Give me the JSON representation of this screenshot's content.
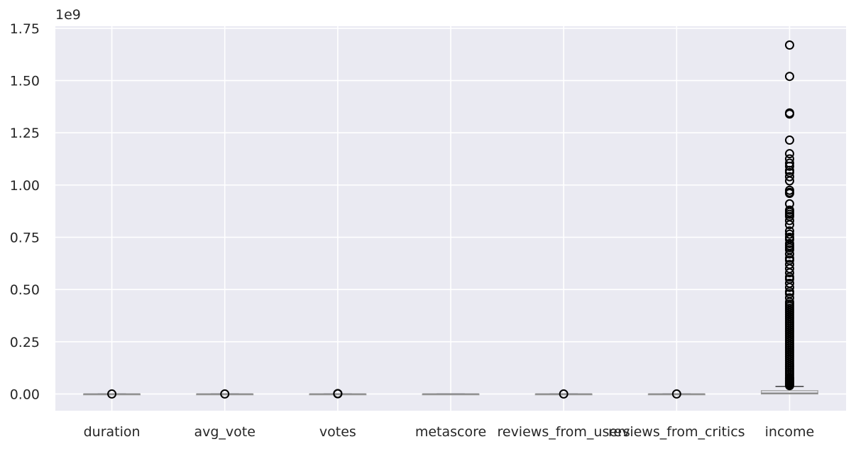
{
  "chart_data": {
    "type": "box",
    "offset_text": "1e9",
    "ylim": [
      -0.08,
      1.76
    ],
    "yticks": [
      0.0,
      0.25,
      0.5,
      0.75,
      1.0,
      1.25,
      1.5,
      1.75
    ],
    "ytick_labels": [
      "0.00",
      "0.25",
      "0.50",
      "0.75",
      "1.00",
      "1.25",
      "1.50",
      "1.75"
    ],
    "grid": true,
    "colors": {
      "background": "#eaeaf2",
      "grid": "#ffffff",
      "box": "#a6a6a6",
      "median": "#7f7f7f",
      "outlier": "#000000"
    },
    "categories": [
      "duration",
      "avg_vote",
      "votes",
      "metascore",
      "reviews_from_users",
      "reviews_from_critics",
      "income"
    ],
    "boxes": [
      {
        "name": "duration",
        "q1": 0,
        "median": 0,
        "q3": 0,
        "whisker_low": 0,
        "whisker_high": 0,
        "outliers": [
          0.0
        ]
      },
      {
        "name": "avg_vote",
        "q1": 0,
        "median": 0,
        "q3": 0,
        "whisker_low": 0,
        "whisker_high": 0,
        "outliers": [
          0.0
        ]
      },
      {
        "name": "votes",
        "q1": 0,
        "median": 0,
        "q3": 0,
        "whisker_low": 0,
        "whisker_high": 0,
        "outliers": [
          0.001,
          0.002
        ]
      },
      {
        "name": "metascore",
        "q1": 0,
        "median": 0,
        "q3": 0,
        "whisker_low": 0,
        "whisker_high": 0,
        "outliers": []
      },
      {
        "name": "reviews_from_users",
        "q1": 0,
        "median": 0,
        "q3": 0,
        "whisker_low": 0,
        "whisker_high": 0,
        "outliers": [
          0.0
        ]
      },
      {
        "name": "reviews_from_critics",
        "q1": 0,
        "median": 0,
        "q3": 0,
        "whisker_low": 0,
        "whisker_high": 0,
        "outliers": [
          0.0
        ]
      },
      {
        "name": "income",
        "q1": 0.0,
        "median": 0.004,
        "q3": 0.016,
        "whisker_low": 0.0,
        "whisker_high": 0.036,
        "outliers": [
          1.67,
          1.52,
          1.345,
          1.34,
          1.215,
          1.15,
          1.125,
          1.105,
          1.09,
          1.07,
          1.06,
          1.04,
          1.02,
          0.975,
          0.965,
          0.96,
          0.91,
          0.88,
          0.87,
          0.86,
          0.85,
          0.83,
          0.81,
          0.78,
          0.765,
          0.75,
          0.74,
          0.72,
          0.71,
          0.7,
          0.69,
          0.67,
          0.65,
          0.64,
          0.62,
          0.6,
          0.58,
          0.56,
          0.55,
          0.53,
          0.51,
          0.49,
          0.48,
          0.46,
          0.44,
          0.43,
          0.42,
          0.41,
          0.4,
          0.39,
          0.38,
          0.37,
          0.36,
          0.35,
          0.34,
          0.33,
          0.32,
          0.31,
          0.3,
          0.29,
          0.28,
          0.27,
          0.26,
          0.25,
          0.24,
          0.23,
          0.22,
          0.21,
          0.2,
          0.19,
          0.18,
          0.17,
          0.16,
          0.15,
          0.14,
          0.13,
          0.12,
          0.11,
          0.1,
          0.09,
          0.08,
          0.075,
          0.07,
          0.065,
          0.06,
          0.055,
          0.05,
          0.045,
          0.04
        ]
      }
    ]
  }
}
